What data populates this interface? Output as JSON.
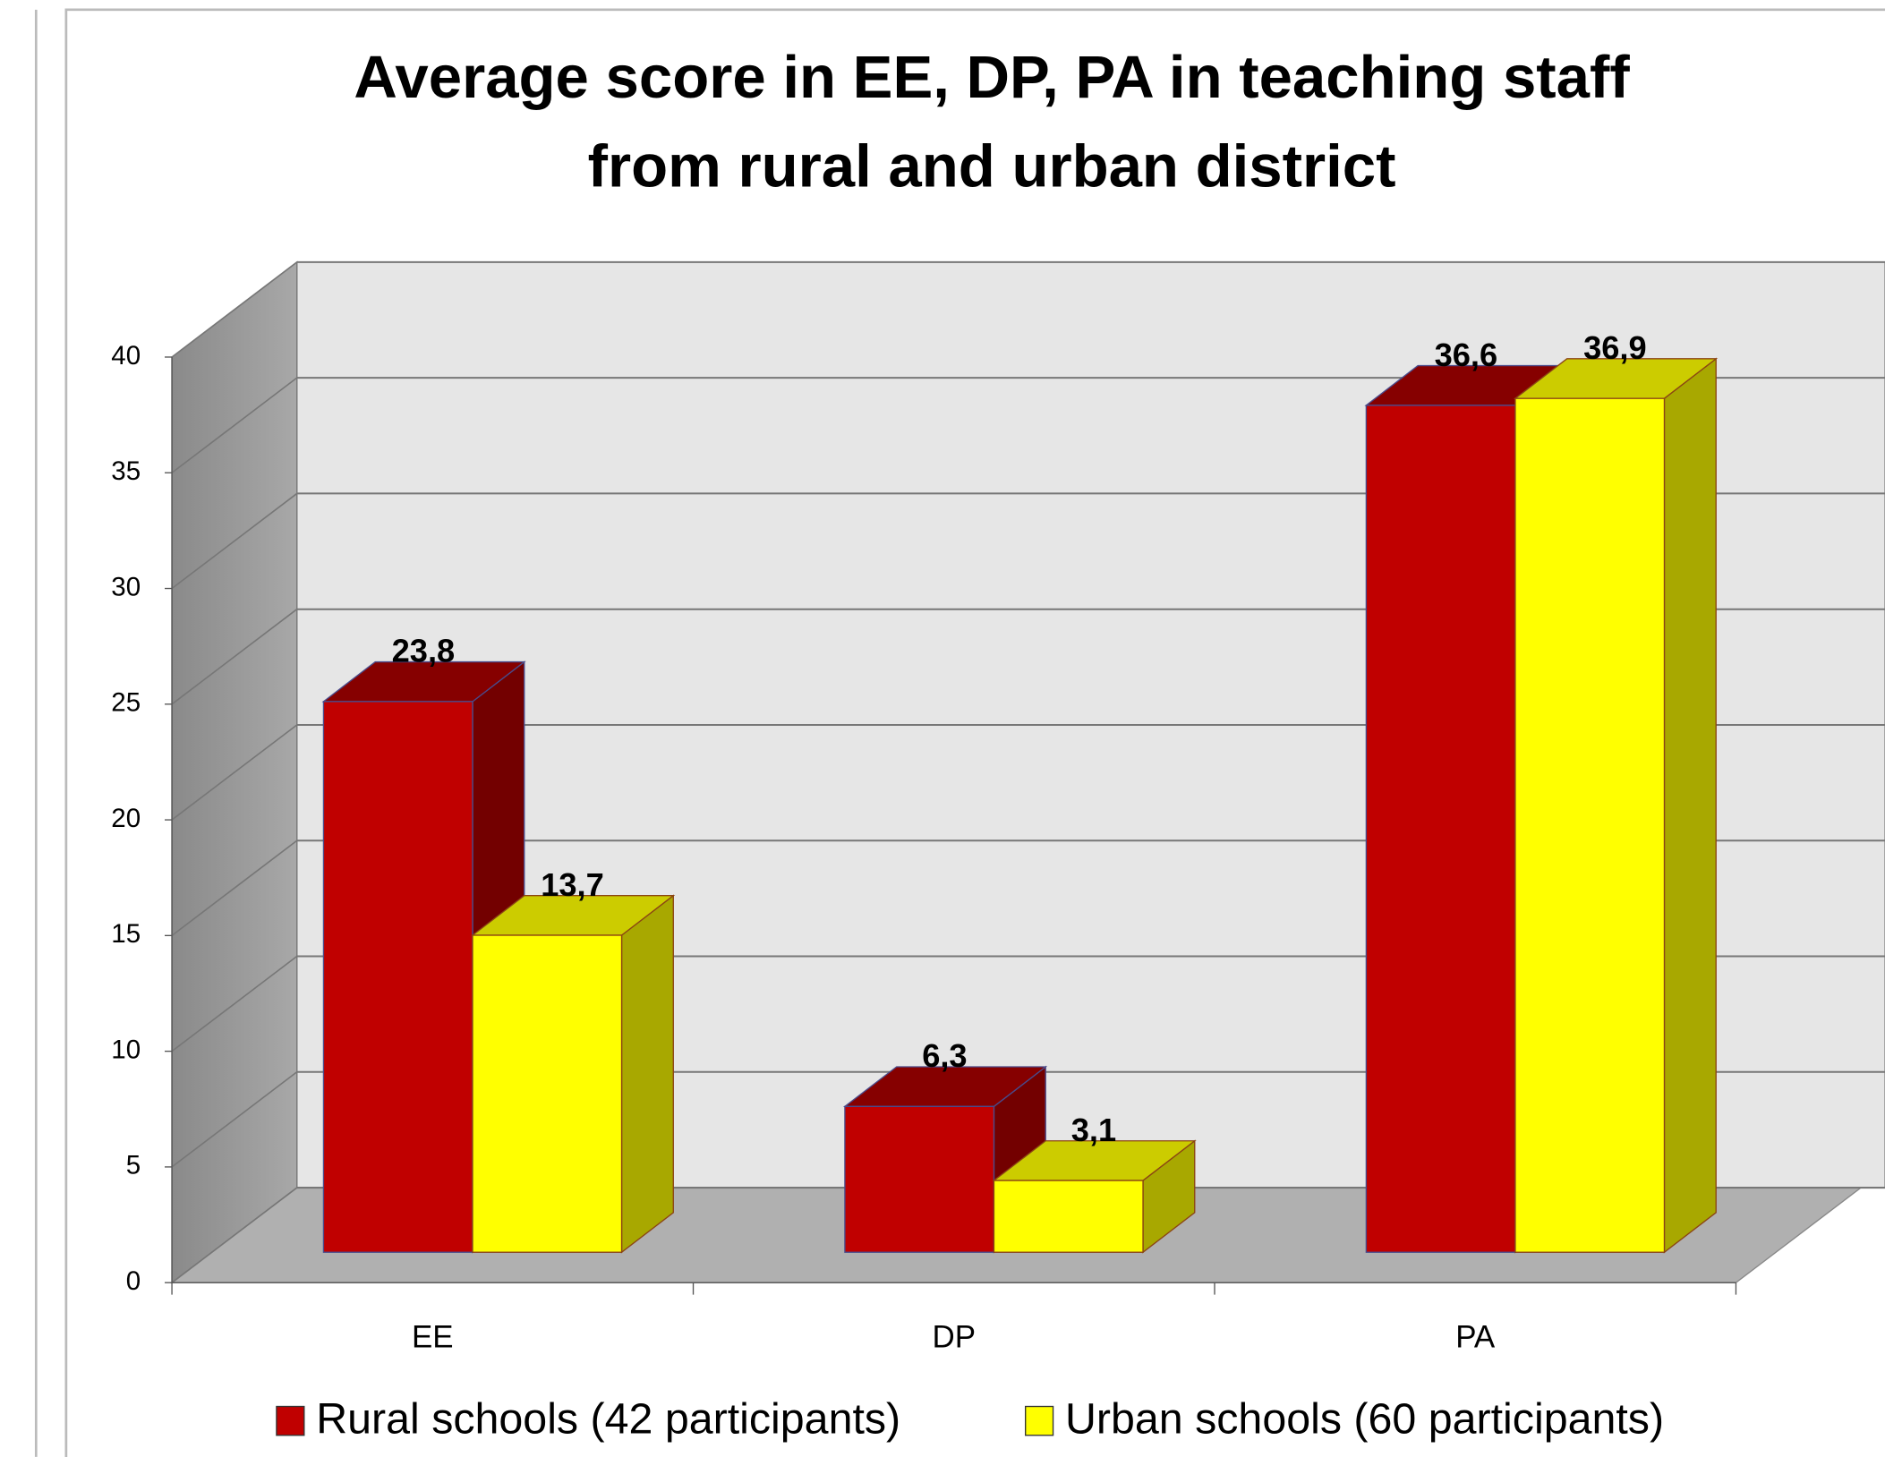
{
  "chart_data": {
    "type": "bar3d",
    "title": [
      "Average score in EE, DP, PA in teaching staff",
      "from rural and urban district"
    ],
    "categories": [
      "EE",
      "DP",
      "PA"
    ],
    "series": [
      {
        "name": "Rural schools (42 participants)",
        "color": "#c00000",
        "values": [
          23.8,
          6.3,
          36.6
        ],
        "value_labels": [
          "23,8",
          "6,3",
          "36,6"
        ]
      },
      {
        "name": "Urban schools (60 participants)",
        "color": "#ffff00",
        "values": [
          13.7,
          3.1,
          36.9
        ],
        "value_labels": [
          "13,7",
          "3,1",
          "36,9"
        ]
      }
    ],
    "ylim": [
      0,
      40
    ],
    "yticks": [
      0,
      5,
      10,
      15,
      20,
      25,
      30,
      35,
      40
    ],
    "grid": true,
    "legend": "bottom"
  }
}
